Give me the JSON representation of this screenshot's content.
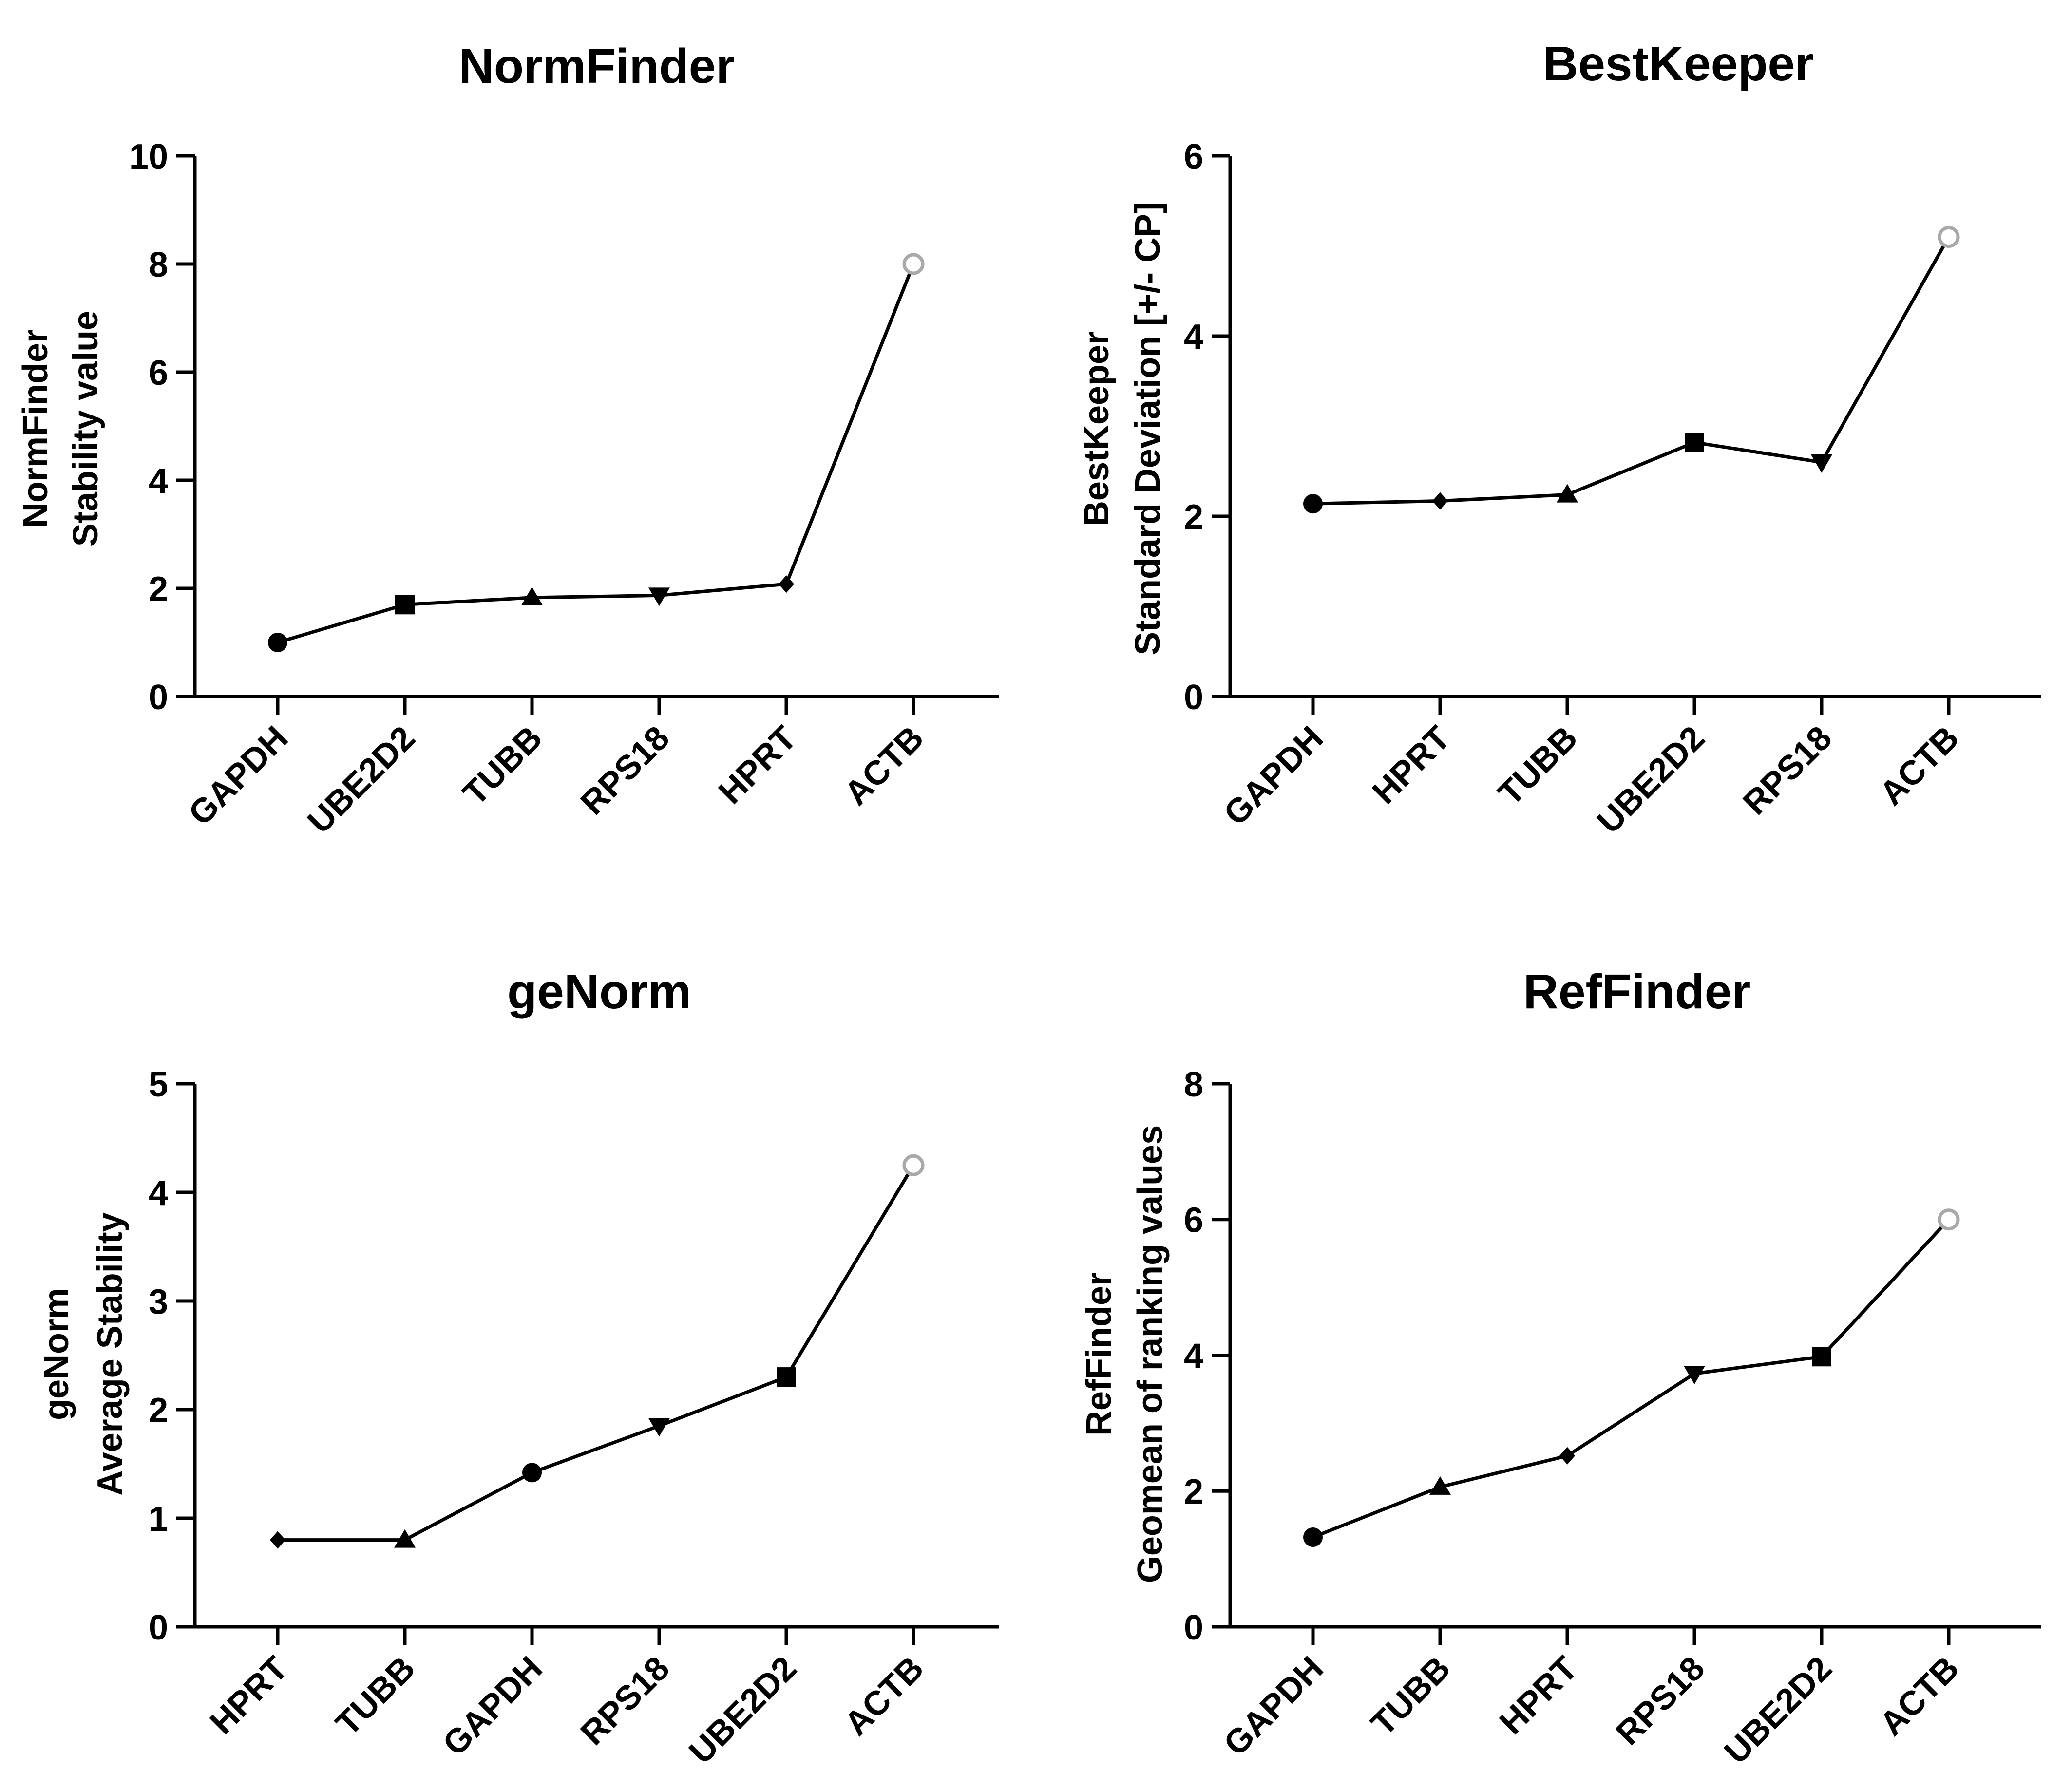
{
  "chart_data": [
    {
      "type": "line",
      "title": "NormFinder",
      "ylabel_lines": [
        "NormFinder",
        "Stability value"
      ],
      "categories": [
        "GAPDH",
        "UBE2D2",
        "TUBB",
        "RPS18",
        "HPRT",
        "ACTB"
      ],
      "values": [
        1.0,
        1.7,
        1.83,
        1.87,
        2.08,
        8.0
      ],
      "markers": [
        "circle",
        "square",
        "triangle-up",
        "triangle-down",
        "diamond",
        "open-circle"
      ],
      "ylim": [
        0,
        10
      ],
      "yticks": [
        0,
        2,
        4,
        6,
        8,
        10
      ]
    },
    {
      "type": "line",
      "title": "BestKeeper",
      "ylabel_lines": [
        "BestKeeper",
        "Standard  Deviation [+/- CP]"
      ],
      "categories": [
        "GAPDH",
        "HPRT",
        "TUBB",
        "UBE2D2",
        "RPS18",
        "ACTB"
      ],
      "values": [
        2.14,
        2.17,
        2.24,
        2.82,
        2.6,
        5.1
      ],
      "markers": [
        "circle",
        "diamond",
        "triangle-up",
        "square",
        "triangle-down",
        "open-circle"
      ],
      "ylim": [
        0,
        6
      ],
      "yticks": [
        0,
        2,
        4,
        6
      ]
    },
    {
      "type": "line",
      "title": "geNorm",
      "ylabel_lines": [
        "geNorm",
        "Average Stability"
      ],
      "categories": [
        "HPRT",
        "TUBB",
        "GAPDH",
        "RPS18",
        "UBE2D2",
        "ACTB"
      ],
      "values": [
        0.8,
        0.8,
        1.42,
        1.85,
        2.3,
        4.25
      ],
      "markers": [
        "diamond",
        "triangle-up",
        "circle",
        "triangle-down",
        "square",
        "open-circle"
      ],
      "ylim": [
        0,
        5
      ],
      "yticks": [
        0,
        1,
        2,
        3,
        4,
        5
      ]
    },
    {
      "type": "line",
      "title": "RefFinder",
      "ylabel_lines": [
        "RefFinder",
        "Geomean of ranking values"
      ],
      "categories": [
        "GAPDH",
        "TUBB",
        "HPRT",
        "RPS18",
        "UBE2D2",
        "ACTB"
      ],
      "values": [
        1.32,
        2.06,
        2.52,
        3.73,
        3.98,
        6.0
      ],
      "markers": [
        "circle",
        "triangle-up",
        "diamond",
        "triangle-down",
        "square",
        "open-circle"
      ],
      "ylim": [
        0,
        8
      ],
      "yticks": [
        0,
        2,
        4,
        6,
        8
      ]
    }
  ]
}
